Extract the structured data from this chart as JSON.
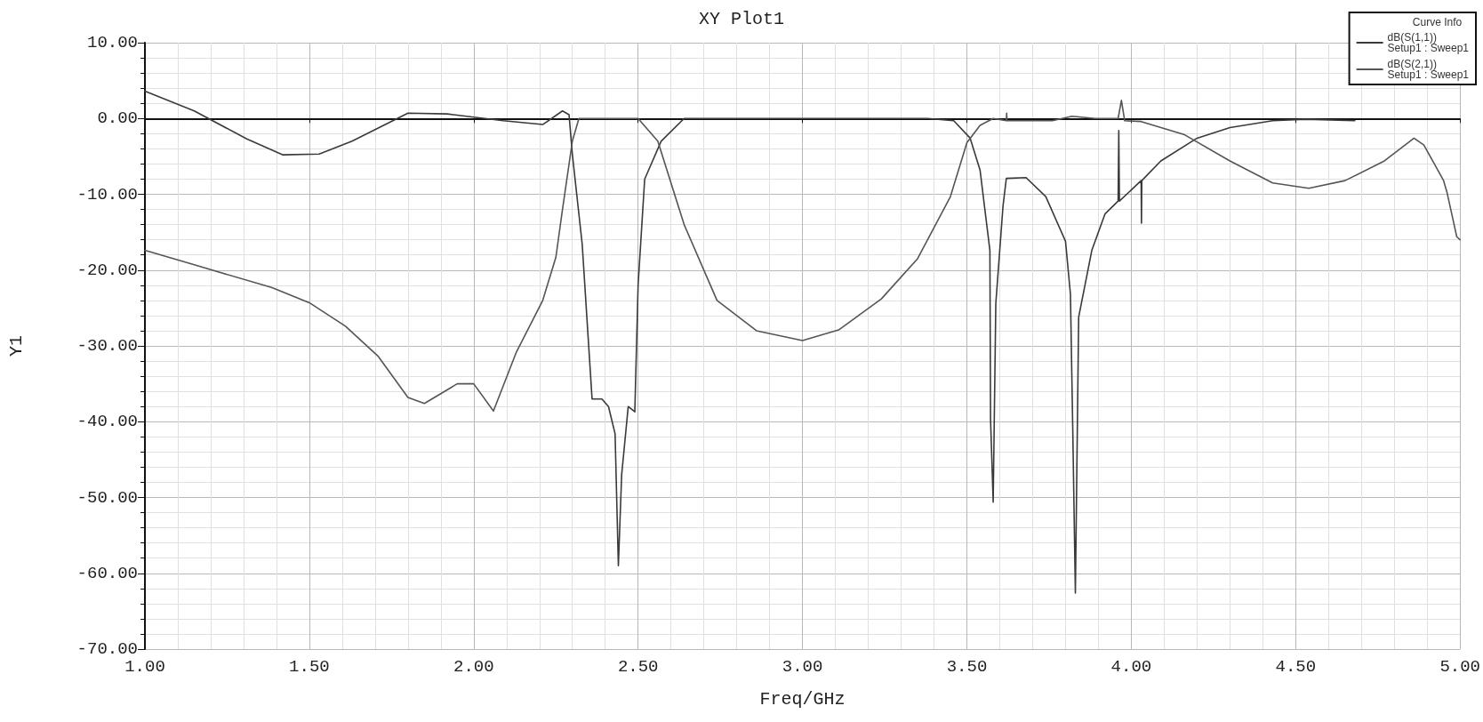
{
  "chart_data": {
    "type": "line",
    "title": "XY Plot1",
    "xlabel": "Freq/GHz",
    "ylabel": "Y1",
    "legend_title": "Curve Info",
    "xlim": [
      1,
      5
    ],
    "xticks": [
      {
        "value": 1,
        "label": "1.00"
      },
      {
        "value": 1.5,
        "label": "1.50"
      },
      {
        "value": 2,
        "label": "2.00"
      },
      {
        "value": 2.5,
        "label": "2.50"
      },
      {
        "value": 3,
        "label": "3.00"
      },
      {
        "value": 3.5,
        "label": "3.50"
      },
      {
        "value": 4,
        "label": "4.00"
      },
      {
        "value": 4.5,
        "label": "4.50"
      },
      {
        "value": 5,
        "label": "5.00"
      }
    ],
    "ylim": [
      -70,
      10
    ],
    "yticks": [
      {
        "value": -70,
        "label": "-70.00"
      },
      {
        "value": -60,
        "label": "-60.00"
      },
      {
        "value": -50,
        "label": "-50.00"
      },
      {
        "value": -40,
        "label": "-40.00"
      },
      {
        "value": -30,
        "label": "-30.00"
      },
      {
        "value": -20,
        "label": "-20.00"
      },
      {
        "value": -10,
        "label": "-10.00"
      },
      {
        "value": 0,
        "label": "0.00"
      },
      {
        "value": 10,
        "label": "10.00"
      }
    ],
    "grid": true,
    "legend": "top right",
    "marker": "none",
    "line_style": "solid",
    "series": [
      {
        "name": "dB(S(1,1))\nSetup1 : Sweep1",
        "color": "#3a3a3a",
        "x": [
          1.0,
          1.15,
          1.31,
          1.42,
          1.53,
          1.63,
          1.8,
          1.92,
          2.09,
          2.21,
          2.27,
          2.29,
          2.3,
          2.33,
          2.36,
          2.39,
          2.41,
          2.43,
          2.44,
          2.45,
          2.47,
          2.49,
          2.5,
          2.52,
          2.57,
          2.64,
          3.0,
          3.38,
          3.46,
          3.51,
          3.54,
          3.57,
          3.572,
          3.58,
          3.588,
          3.61,
          3.62,
          3.68,
          3.74,
          3.8,
          3.815,
          3.822,
          3.83,
          3.84,
          3.88,
          3.92,
          3.96,
          3.962,
          3.964,
          4.03,
          4.031,
          4.032,
          4.09,
          4.2,
          4.3,
          4.43,
          4.53,
          4.68
        ],
        "values": [
          3.6,
          1.0,
          -2.7,
          -4.8,
          -4.7,
          -3.0,
          0.7,
          0.6,
          -0.3,
          -0.8,
          1.0,
          0.5,
          -4.7,
          -16.6,
          -37,
          -37,
          -38,
          -41.6,
          -59,
          -47,
          -38,
          -38.7,
          -22,
          -8,
          -3,
          0,
          0,
          0,
          -0.3,
          -2.6,
          -6.8,
          -17.4,
          -39.7,
          -50.6,
          -24.4,
          -11.5,
          -7.9,
          -7.8,
          -10.3,
          -16.2,
          -23.2,
          -40.9,
          -62.6,
          -26.2,
          -17.4,
          -12.6,
          -10.9,
          -1.6,
          -10.9,
          -8.2,
          -13.8,
          -8.2,
          -5.6,
          -2.6,
          -1.2,
          -0.3,
          -0.1,
          -0.3
        ]
      },
      {
        "name": "dB(S(2,1))\nSetup1 : Sweep1",
        "color": "#555555",
        "x": [
          1.0,
          1.15,
          1.385,
          1.5,
          1.61,
          1.71,
          1.8,
          1.85,
          1.95,
          2.0,
          2.06,
          2.13,
          2.21,
          2.25,
          2.27,
          2.3,
          2.32,
          2.5,
          2.56,
          2.64,
          2.74,
          2.86,
          3.0,
          3.11,
          3.24,
          3.35,
          3.45,
          3.5,
          3.54,
          3.58,
          3.62,
          3.621,
          3.622,
          3.76,
          3.82,
          3.89,
          3.96,
          3.97,
          3.98,
          4.03,
          4.16,
          4.3,
          4.43,
          4.54,
          4.65,
          4.77,
          4.86,
          4.89,
          4.95,
          4.96,
          4.99,
          5.0
        ],
        "values": [
          -17.4,
          -19.3,
          -22.3,
          -24.3,
          -27.4,
          -31.4,
          -36.8,
          -37.6,
          -35,
          -35,
          -38.6,
          -30.8,
          -24,
          -18.3,
          -12,
          -3,
          0,
          0,
          -3,
          -14,
          -24,
          -28,
          -29.3,
          -27.9,
          -23.8,
          -18.5,
          -10.3,
          -3.2,
          -0.9,
          0,
          -0.3,
          0.7,
          -0.3,
          -0.3,
          0.3,
          0,
          0,
          2.4,
          -0.3,
          -0.4,
          -2.1,
          -5.6,
          -8.5,
          -9.2,
          -8.2,
          -5.6,
          -2.6,
          -3.5,
          -8.2,
          -9.7,
          -15.6,
          -16
        ]
      }
    ]
  }
}
